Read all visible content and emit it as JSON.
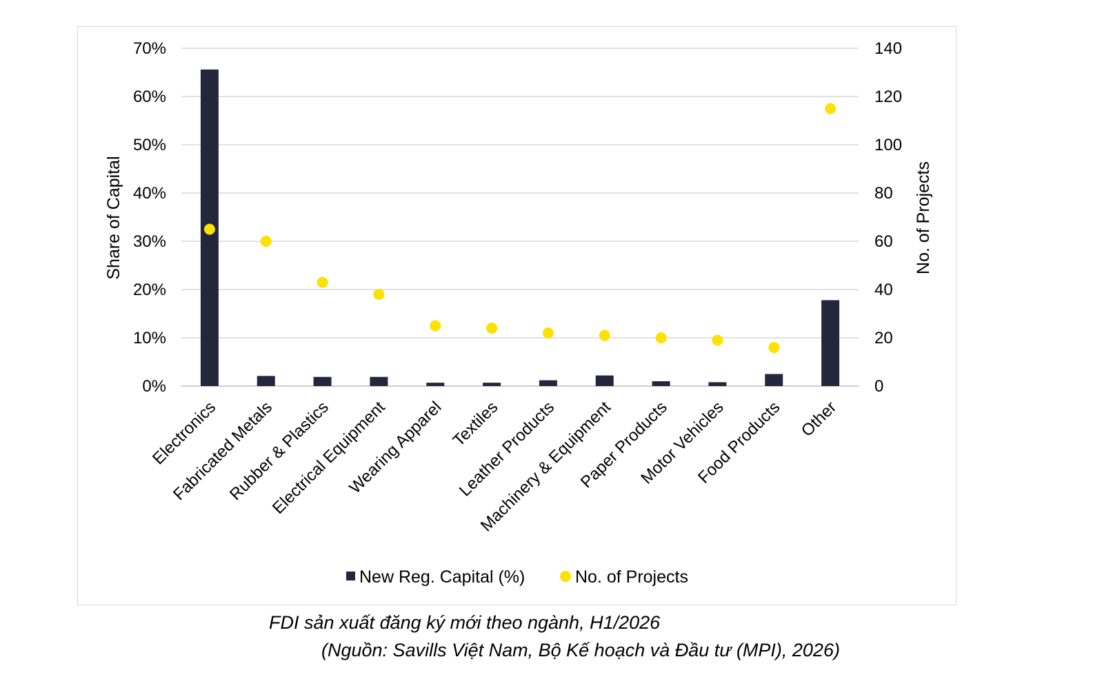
{
  "chart_data": {
    "type": "bar",
    "categories": [
      "Electronics",
      "Fabricated Metals",
      "Rubber & Plastics",
      "Electrical Equipment",
      "Wearing Apparel",
      "Textiles",
      "Leather Products",
      "Machinery & Equipment",
      "Paper Products",
      "Motor Vehicles",
      "Food Products",
      "Other"
    ],
    "series": [
      {
        "name": "New Reg. Capital (%)",
        "type": "bar",
        "axis": "left",
        "color": "#24263b",
        "values": [
          65.6,
          2.1,
          1.9,
          1.9,
          0.7,
          0.7,
          1.2,
          2.2,
          1.0,
          0.8,
          2.5,
          17.8
        ]
      },
      {
        "name": "No. of Projects",
        "type": "scatter",
        "axis": "right",
        "color": "#fde100",
        "values": [
          65,
          60,
          43,
          38,
          25,
          24,
          22,
          21,
          20,
          19,
          16,
          115
        ]
      }
    ],
    "ylabel": "Share of Capital",
    "y2label": "No. of Projects",
    "ylim": [
      0,
      70
    ],
    "y2lim": [
      0,
      140
    ],
    "yticks": [
      "0%",
      "10%",
      "20%",
      "30%",
      "40%",
      "50%",
      "60%",
      "70%"
    ],
    "y2ticks": [
      "0",
      "20",
      "40",
      "60",
      "80",
      "100",
      "120",
      "140"
    ],
    "grid": true,
    "legend_position": "bottom"
  },
  "caption": {
    "title": "FDI sản xuất đăng ký mới theo ngành, H1/2026",
    "source": "(Nguồn: Savills Việt Nam, Bộ Kế hoạch và Đầu tư (MPI), 2026)"
  }
}
